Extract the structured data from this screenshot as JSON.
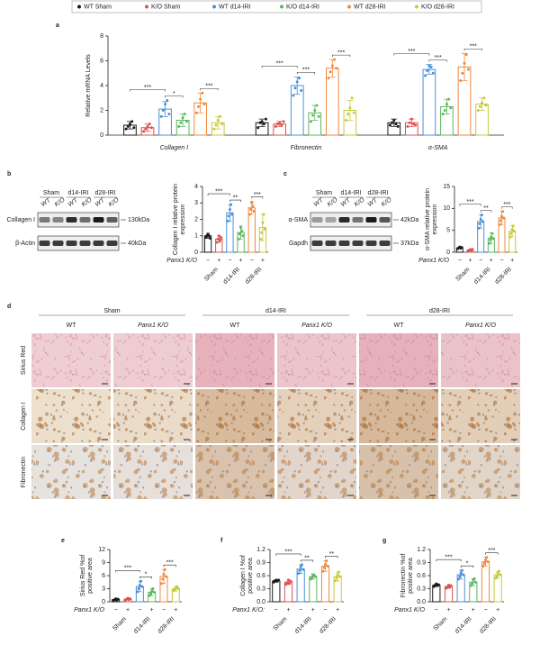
{
  "chart_data": [
    {
      "type": "bar",
      "label": "a",
      "ylabel": "Relative mRNA Levels",
      "legend": "top",
      "categories": [
        "Collagen I",
        "Fibronectin",
        "α-SMA"
      ],
      "ylim": [
        0,
        8
      ],
      "yticks": [
        0,
        2,
        4,
        6,
        8
      ],
      "series": [
        {
          "name": "WT Sham",
          "color": "#1a1a1a",
          "values": [
            0.8,
            1.0,
            1.0
          ],
          "errors": [
            0.3,
            0.3,
            0.3
          ],
          "points": [
            [
              0.5,
              0.7,
              0.9,
              1.1,
              0.6
            ],
            [
              0.6,
              1.0,
              1.1,
              0.9,
              1.3
            ],
            [
              0.8,
              1.0,
              1.2,
              0.9,
              0.7
            ]
          ]
        },
        {
          "name": "K/O Sham",
          "color": "#d9534f",
          "values": [
            0.6,
            0.9,
            1.0
          ],
          "errors": [
            0.3,
            0.2,
            0.3
          ],
          "points": [
            [
              0.3,
              0.5,
              0.7,
              0.9,
              0.6
            ],
            [
              0.7,
              0.9,
              1.0,
              0.8,
              1.1
            ],
            [
              0.7,
              1.0,
              1.3,
              0.9,
              0.8
            ]
          ]
        },
        {
          "name": "WT d14-IRI",
          "color": "#4a90d9",
          "values": [
            2.1,
            4.0,
            5.3
          ],
          "errors": [
            0.6,
            0.7,
            0.4
          ],
          "points": [
            [
              1.5,
              2.0,
              2.5,
              2.8,
              1.7
            ],
            [
              3.2,
              3.8,
              4.3,
              4.6,
              3.6
            ],
            [
              4.8,
              5.2,
              5.6,
              5.5,
              5.0
            ]
          ]
        },
        {
          "name": "K/O d14-IRI",
          "color": "#5cb85c",
          "values": [
            1.2,
            1.8,
            2.3
          ],
          "errors": [
            0.5,
            0.6,
            0.6
          ],
          "points": [
            [
              0.7,
              1.0,
              1.4,
              1.7,
              1.1
            ],
            [
              1.1,
              1.6,
              2.0,
              2.4,
              1.5
            ],
            [
              1.7,
              2.0,
              2.5,
              2.9,
              2.2
            ]
          ]
        },
        {
          "name": "WT d28-IRI",
          "color": "#f0883e",
          "values": [
            2.6,
            5.4,
            5.5
          ],
          "errors": [
            0.8,
            0.7,
            1.1
          ],
          "points": [
            [
              1.8,
              2.3,
              2.9,
              3.4,
              2.5
            ],
            [
              4.6,
              5.1,
              5.6,
              6.1,
              5.4
            ],
            [
              4.4,
              5.0,
              5.8,
              6.5,
              5.3
            ]
          ]
        },
        {
          "name": "K/O d28-IRI",
          "color": "#c5c93a",
          "values": [
            1.0,
            2.0,
            2.5
          ],
          "errors": [
            0.5,
            0.8,
            0.5
          ],
          "points": [
            [
              0.5,
              0.8,
              1.2,
              1.5,
              0.9
            ],
            [
              1.2,
              1.7,
              2.2,
              3.0,
              1.8
            ],
            [
              2.0,
              2.3,
              2.6,
              3.0,
              2.4
            ]
          ]
        }
      ],
      "annotations": [
        [
          "***",
          "*",
          "***"
        ],
        [
          "***",
          "***",
          "***"
        ],
        [
          "***",
          "***",
          "***"
        ]
      ]
    },
    {
      "type": "bar",
      "label": "b",
      "ylabel": [
        "Collagen I relative protein",
        "expression"
      ],
      "ylim": [
        0,
        4
      ],
      "yticks": [
        0,
        1,
        2,
        3,
        4
      ],
      "x_label": "Panx1 K/O",
      "x_marks": [
        "−",
        "+",
        "−",
        "+",
        "−",
        "+"
      ],
      "groups": [
        "Sham",
        "d14-IRI",
        "d28-IRI"
      ],
      "colors": [
        "#1a1a1a",
        "#d9534f",
        "#4a90d9",
        "#5cb85c",
        "#f0883e",
        "#c5c93a"
      ],
      "values": [
        1.0,
        0.8,
        2.4,
        1.2,
        2.7,
        1.5
      ],
      "errors": [
        0.15,
        0.2,
        0.5,
        0.4,
        0.4,
        0.8
      ],
      "points": [
        [
          0.9,
          1.0,
          1.1,
          1.0,
          0.85
        ],
        [
          0.6,
          0.8,
          1.0,
          0.7,
          0.9
        ],
        [
          1.9,
          2.2,
          2.6,
          2.9,
          2.3
        ],
        [
          0.8,
          1.1,
          1.5,
          1.3,
          1.0
        ],
        [
          2.3,
          2.6,
          3.0,
          2.8,
          2.5
        ],
        [
          0.8,
          1.2,
          1.8,
          2.3,
          1.4
        ]
      ],
      "annotations": [
        "***",
        "**",
        "***"
      ]
    },
    {
      "type": "bar",
      "label": "c",
      "ylabel": [
        "α-SMA relative protein",
        "expression"
      ],
      "ylim": [
        0,
        15
      ],
      "yticks": [
        0,
        5,
        10,
        15
      ],
      "x_label": "Panx1 K/O",
      "x_marks": [
        "−",
        "+",
        "−",
        "+",
        "−",
        "+"
      ],
      "groups": [
        "Sham",
        "d14-IRI",
        "d28-IRI"
      ],
      "colors": [
        "#1a1a1a",
        "#d9534f",
        "#4a90d9",
        "#5cb85c",
        "#f0883e",
        "#c5c93a"
      ],
      "values": [
        1.0,
        0.5,
        7.0,
        3.2,
        7.8,
        4.8
      ],
      "errors": [
        0.2,
        0.2,
        1.5,
        1.2,
        1.5,
        1.3
      ],
      "points": [
        [
          0.8,
          1.0,
          1.2,
          0.9,
          1.1
        ],
        [
          0.3,
          0.5,
          0.6,
          0.4,
          0.7
        ],
        [
          5.5,
          6.5,
          7.5,
          8.5,
          7.0
        ],
        [
          2.0,
          2.8,
          3.5,
          4.3,
          3.1
        ],
        [
          6.3,
          7.2,
          8.2,
          9.3,
          7.8
        ],
        [
          3.5,
          4.3,
          5.2,
          6.0,
          4.8
        ]
      ],
      "annotations": [
        "***",
        "**",
        "***"
      ]
    },
    {
      "type": "bar",
      "label": "e",
      "ylabel": [
        "Sirius Red %of",
        "positive area"
      ],
      "ylim": [
        0,
        12
      ],
      "yticks": [
        0,
        3,
        6,
        9,
        12
      ],
      "x_label": "Panx1 K/O",
      "x_marks": [
        "−",
        "+",
        "−",
        "+",
        "−",
        "+"
      ],
      "groups": [
        "Sham",
        "d14-IRI",
        "d28-IRI"
      ],
      "colors": [
        "#1a1a1a",
        "#d9534f",
        "#4a90d9",
        "#5cb85c",
        "#f0883e",
        "#c5c93a"
      ],
      "values": [
        0.5,
        0.6,
        3.5,
        2.2,
        5.8,
        3.0
      ],
      "errors": [
        0.2,
        0.2,
        1.2,
        0.8,
        1.6,
        0.5
      ],
      "points": [
        [
          0.3,
          0.5,
          0.7,
          0.4,
          0.6
        ],
        [
          0.4,
          0.6,
          0.8,
          0.5,
          0.7
        ],
        [
          2.3,
          3.0,
          3.8,
          4.7,
          3.5
        ],
        [
          1.4,
          1.9,
          2.5,
          3.0,
          2.2
        ],
        [
          4.2,
          5.2,
          6.3,
          7.4,
          5.8
        ],
        [
          2.5,
          2.8,
          3.2,
          3.5,
          3.0
        ]
      ],
      "annotations": [
        "***",
        "*",
        "***"
      ]
    },
    {
      "type": "bar",
      "label": "f",
      "ylabel": [
        "Collagen I %of",
        "positive area"
      ],
      "ylim": [
        0,
        1.2
      ],
      "yticks": [
        {
          "value": 0,
          "label": "0.0"
        },
        0.3,
        0.6,
        0.9,
        1.2
      ],
      "x_label": "Panx1 K/O:",
      "x_marks": [
        "−",
        "+",
        "−",
        "+",
        "−",
        "+"
      ],
      "groups": [
        "Sham",
        "d14-IRI",
        "d28-IRI"
      ],
      "colors": [
        "#1a1a1a",
        "#d9534f",
        "#4a90d9",
        "#5cb85c",
        "#f0883e",
        "#c5c93a"
      ],
      "values": [
        0.48,
        0.45,
        0.75,
        0.58,
        0.82,
        0.58
      ],
      "errors": [
        0.03,
        0.05,
        0.1,
        0.06,
        0.12,
        0.1
      ],
      "points": [
        [
          0.45,
          0.48,
          0.5,
          0.47,
          0.5
        ],
        [
          0.4,
          0.44,
          0.5,
          0.42,
          0.47
        ],
        [
          0.65,
          0.72,
          0.8,
          0.85,
          0.74
        ],
        [
          0.52,
          0.56,
          0.62,
          0.6,
          0.58
        ],
        [
          0.7,
          0.78,
          0.86,
          0.94,
          0.82
        ],
        [
          0.48,
          0.55,
          0.62,
          0.68,
          0.58
        ]
      ],
      "annotations": [
        "***",
        "**",
        "**"
      ]
    },
    {
      "type": "bar",
      "label": "g",
      "ylabel": [
        "Fibronectin %of",
        "positive area"
      ],
      "ylim": [
        0,
        1.2
      ],
      "yticks": [
        {
          "value": 0,
          "label": "0.0"
        },
        0.3,
        0.6,
        0.9,
        1.2
      ],
      "x_label": "Panx1 K/O",
      "x_marks": [
        "−",
        "+",
        "−",
        "+",
        "−",
        "+"
      ],
      "groups": [
        "Sham",
        "d14-IRI",
        "d28-IRI"
      ],
      "colors": [
        "#1a1a1a",
        "#d9534f",
        "#4a90d9",
        "#5cb85c",
        "#f0883e",
        "#c5c93a"
      ],
      "values": [
        0.38,
        0.35,
        0.62,
        0.45,
        0.92,
        0.62
      ],
      "errors": [
        0.03,
        0.04,
        0.1,
        0.08,
        0.1,
        0.08
      ],
      "points": [
        [
          0.35,
          0.38,
          0.41,
          0.37,
          0.39
        ],
        [
          0.31,
          0.34,
          0.38,
          0.33,
          0.37
        ],
        [
          0.52,
          0.58,
          0.66,
          0.72,
          0.62
        ],
        [
          0.37,
          0.42,
          0.5,
          0.53,
          0.45
        ],
        [
          0.82,
          0.88,
          0.96,
          1.02,
          0.92
        ],
        [
          0.54,
          0.58,
          0.66,
          0.7,
          0.62
        ]
      ],
      "annotations": [
        "***",
        "*",
        "***"
      ]
    }
  ],
  "blots": [
    {
      "headers": [
        "Sham",
        "d14-IRI",
        "d28-IRI"
      ],
      "lanes": [
        "WT",
        "K/O"
      ],
      "rows": [
        "Collagen I",
        "β-Actin"
      ],
      "sizes": [
        "130kDa",
        "40kDa"
      ]
    },
    {
      "headers": [
        "Sham",
        "d14-IRI",
        "d28-IRI"
      ],
      "lanes": [
        "WT",
        "K/O"
      ],
      "rows": [
        "α-SMA",
        "Gapdh"
      ],
      "sizes": [
        "42kDa",
        "37kDa"
      ]
    }
  ],
  "micrographs": {
    "label": "d",
    "groups": [
      "Sham",
      "d14-IRI",
      "d28-IRI"
    ],
    "genotypes": [
      "WT",
      "Panx1 K/O"
    ],
    "rows": [
      "Sirius Red",
      "Collagen I",
      "Fibronectin"
    ]
  }
}
